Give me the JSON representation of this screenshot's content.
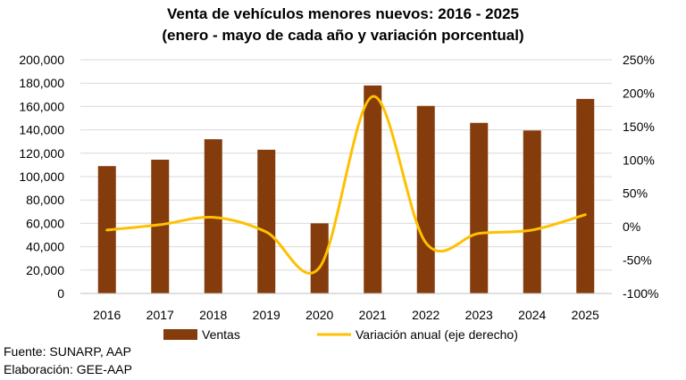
{
  "chart_data": {
    "type": "bar+line",
    "title": "Venta de vehículos menores nuevos: 2016 - 2025",
    "subtitle": "(enero - mayo de cada año y variación porcentual)",
    "categories": [
      "2016",
      "2017",
      "2018",
      "2019",
      "2020",
      "2021",
      "2022",
      "2023",
      "2024",
      "2025"
    ],
    "series": [
      {
        "name": "Ventas",
        "type": "bar",
        "axis": "left",
        "color": "#843c0c",
        "values": [
          109000,
          114500,
          132000,
          123000,
          60000,
          178000,
          160500,
          146000,
          139500,
          166500
        ]
      },
      {
        "name": "Variación anual (eje derecho)",
        "type": "line",
        "axis": "right",
        "color": "#ffc000",
        "values": [
          -5,
          3,
          14,
          -8,
          -61,
          195,
          -24,
          -10,
          -5,
          18
        ]
      }
    ],
    "y_left": {
      "min": 0,
      "max": 200000,
      "ticks": [
        0,
        20000,
        40000,
        60000,
        80000,
        100000,
        120000,
        140000,
        160000,
        180000,
        200000
      ],
      "tick_labels": [
        "0",
        "20,000",
        "40,000",
        "60,000",
        "80,000",
        "100,000",
        "120,000",
        "140,000",
        "160,000",
        "180,000",
        "200,000"
      ]
    },
    "y_right": {
      "min": -100,
      "max": 250,
      "ticks": [
        -100,
        -50,
        0,
        50,
        100,
        150,
        200,
        250
      ],
      "tick_labels": [
        "-100%",
        "-50%",
        "0%",
        "50%",
        "100%",
        "150%",
        "200%",
        "250%"
      ]
    },
    "grid": true,
    "legend_position": "bottom"
  },
  "footer": {
    "source": "Fuente: SUNARP, AAP",
    "credit": "Elaboración: GEE-AAP"
  }
}
